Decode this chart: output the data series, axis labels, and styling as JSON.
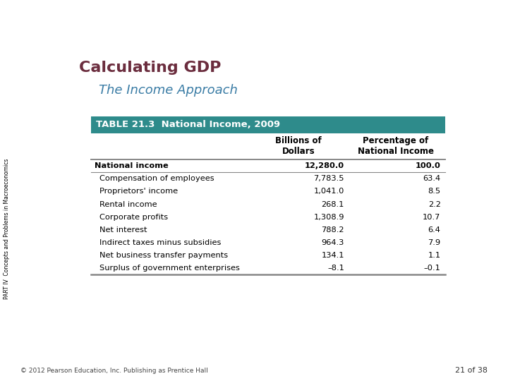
{
  "title": "Calculating GDP",
  "subtitle": "The Income Approach",
  "table_header": "TABLE 21.3  National Income, 2009",
  "col_headers": [
    "",
    "Billions of\nDollars",
    "Percentage of\nNational Income"
  ],
  "rows": [
    [
      "National income",
      "12,280.0",
      "100.0"
    ],
    [
      "    Compensation of employees",
      "7,783.5",
      "63.4"
    ],
    [
      "    Proprietors' income",
      "1,041.0",
      "8.5"
    ],
    [
      "    Rental income",
      "268.1",
      "2.2"
    ],
    [
      "    Corporate profits",
      "1,308.9",
      "10.7"
    ],
    [
      "    Net interest",
      "788.2",
      "6.4"
    ],
    [
      "    Indirect taxes minus subsidies",
      "964.3",
      "7.9"
    ],
    [
      "    Net business transfer payments",
      "134.1",
      "1.1"
    ],
    [
      "    Surplus of government enterprises",
      "–8.1",
      "–0.1"
    ]
  ],
  "title_color": "#6B2D3E",
  "subtitle_color": "#3A7CA5",
  "table_header_bg": "#2E8B8B",
  "table_header_text": "#FFFFFF",
  "border_color": "#888888",
  "side_text": "PART IV  Concepts and Problems in Macroeconomics",
  "footer_left": "© 2012 Pearson Education, Inc. Publishing as Prentice Hall",
  "footer_right": "21 of 38",
  "background_color": "#FFFFFF"
}
